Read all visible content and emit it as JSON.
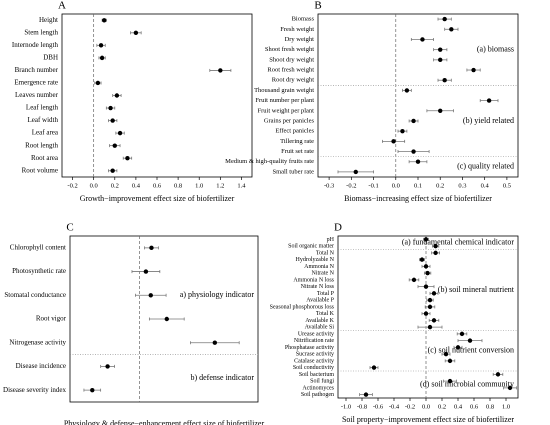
{
  "chart_data": [
    {
      "type": "dot",
      "title": "A",
      "xlabel": "Growth−improvement effect size of biofertilizer",
      "xlim": [
        -0.3,
        1.5
      ],
      "xticks": [
        -0.2,
        {
          "value": 0,
          "label": "0.0"
        },
        0.2,
        0.4,
        0.6,
        0.8,
        {
          "value": 1,
          "label": "1.0"
        },
        1.2,
        1.4
      ],
      "groups": [
        {
          "categories": [
            "Height",
            "Stem length",
            "Internode length",
            "DBH",
            "Branch number",
            "Emergence rate",
            "Leaves number",
            "Leaf length",
            "Leaf width",
            "Leaf area",
            "Root length",
            "Root area",
            "Root volume"
          ],
          "values": [
            0.1,
            0.4,
            0.07,
            0.08,
            1.2,
            0.04,
            0.22,
            0.16,
            0.18,
            0.25,
            0.2,
            0.32,
            0.18
          ],
          "errors": [
            0.02,
            0.05,
            0.04,
            0.03,
            0.1,
            0.03,
            0.04,
            0.04,
            0.04,
            0.04,
            0.05,
            0.04,
            0.04
          ]
        }
      ]
    },
    {
      "type": "dot",
      "title": "B",
      "xlabel": "Biomass−increasing effect size of biofertilizer",
      "xlim": [
        -0.35,
        0.55
      ],
      "xticks": [
        -0.3,
        -0.2,
        -0.1,
        {
          "value": 0,
          "label": "0.0"
        },
        0.1,
        0.2,
        0.3,
        0.4,
        0.5
      ],
      "groups": [
        {
          "name": "(a) biomass",
          "categories": [
            "Biomass",
            "Fresh weight",
            "Dry weight",
            "Shoot fresh weight",
            "Shoot dry weight",
            "Root fresh weight",
            "Root dry weight"
          ],
          "values": [
            0.22,
            0.25,
            0.12,
            0.2,
            0.2,
            0.35,
            0.22
          ],
          "errors": [
            0.03,
            0.03,
            0.05,
            0.03,
            0.03,
            0.03,
            0.03
          ]
        },
        {
          "name": "(b) yield related",
          "categories": [
            "Thousand grain weight",
            "Fruit number per plant",
            "Fruit weight per plant",
            "Grains per panicles",
            "Effect panicles",
            "Tillering rate",
            "Fruit set rate"
          ],
          "values": [
            0.05,
            0.42,
            0.2,
            0.08,
            0.03,
            -0.01,
            0.08
          ],
          "errors": [
            0.02,
            0.04,
            0.06,
            0.02,
            0.02,
            0.05,
            0.07
          ]
        },
        {
          "name": "(c) quality related",
          "categories": [
            "Medium & high-quality fruits rate",
            "Small tuber rate"
          ],
          "values": [
            0.1,
            -0.18
          ],
          "errors": [
            0.04,
            0.08
          ]
        }
      ]
    },
    {
      "type": "dot",
      "title": "C",
      "xlabel": "Physiology & defense−enhancement effect size of biofertilizer",
      "xlim": [
        -1,
        1.7
      ],
      "groups": [
        {
          "name": "a) physiology indicator",
          "categories": [
            "Chlorophyll content",
            "Photosynthetic rate",
            "Stomatal conductance",
            "Root vigor",
            "Nitrogenase activity"
          ],
          "values": [
            0.17,
            0.09,
            0.16,
            0.39,
            1.08
          ],
          "errors": [
            0.1,
            0.2,
            0.22,
            0.25,
            0.35
          ]
        },
        {
          "name": "b) defense indicator",
          "categories": [
            "Disease incidence",
            "Disease severity index"
          ],
          "values": [
            -0.46,
            -0.68
          ],
          "errors": [
            0.1,
            0.12
          ]
        }
      ]
    },
    {
      "type": "dot",
      "title": "D",
      "xlabel": "Soil property−improvement effect size of biofertilizer",
      "xlim": [
        -1.1,
        1.15
      ],
      "xticks": [
        {
          "value": -1,
          "label": "-1.0"
        },
        -0.8,
        -0.6,
        -0.4,
        -0.2,
        {
          "value": 0,
          "label": "0.0"
        },
        0.2,
        0.4,
        0.6,
        0.8,
        {
          "value": 1,
          "label": "1.0"
        }
      ],
      "groups": [
        {
          "name": "(a) fundamental chemical indicator",
          "categories": [
            "pH",
            "Soil organic matter"
          ],
          "values": [
            0,
            0.12
          ],
          "errors": [
            0.03,
            0.04
          ]
        },
        {
          "name": "(b) soil mineral nutrient",
          "categories": [
            "Total N",
            "Hydrolyzable N",
            "Ammonia N",
            "Nitrate N",
            "Ammonia N loss",
            "Nitrate N loss",
            "Total P",
            "Available P",
            "Seasonal phosphorous loss",
            "Total K",
            "Available K",
            "Available Si"
          ],
          "values": [
            0.12,
            -0.05,
            0,
            0.02,
            -0.15,
            0,
            0.1,
            0.05,
            0.05,
            0,
            0.1,
            0.05
          ],
          "errors": [
            0.05,
            0.03,
            0.05,
            0.04,
            0.06,
            0.1,
            0.05,
            0.04,
            0.06,
            0.05,
            0.06,
            0.15
          ]
        },
        {
          "name": "(c) soil nutrient conversion",
          "categories": [
            "Urease activity",
            "Nitrification rate",
            "Phosphatase activity",
            "Sucrase activity",
            "Catalase activity",
            "Soil conductivity"
          ],
          "values": [
            0.45,
            0.55,
            0.4,
            0.25,
            0.3,
            -0.65
          ],
          "errors": [
            0.06,
            0.15,
            0.05,
            0.05,
            0.06,
            0.05
          ]
        },
        {
          "name": "(d) soil microbial community",
          "categories": [
            "Soil bacterium",
            "Soil fungi",
            "Actinomyces",
            "Soil pathogen"
          ],
          "values": [
            0.9,
            0.3,
            1.05,
            -0.75
          ],
          "errors": [
            0.06,
            0.08,
            0.08,
            0.08
          ]
        }
      ]
    }
  ]
}
